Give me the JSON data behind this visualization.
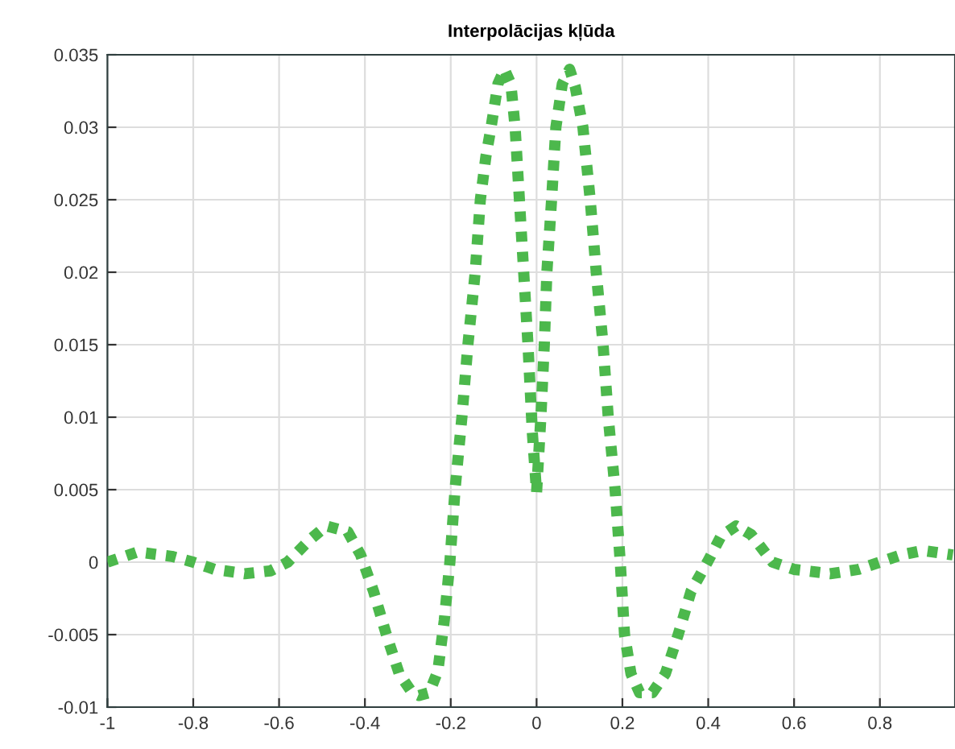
{
  "chart_data": {
    "type": "line",
    "title": "Interpolācijas kļūda",
    "series": [
      {
        "color": "#4cb84c",
        "x": [
          -1,
          -0.93,
          -0.85,
          -0.8,
          -0.75,
          -0.68,
          -0.62,
          -0.58,
          -0.53,
          -0.49,
          -0.44,
          -0.41,
          -0.38,
          -0.35,
          -0.32,
          -0.29,
          -0.274,
          -0.25,
          -0.23,
          -0.215,
          -0.202,
          -0.19,
          -0.174,
          -0.16,
          -0.143,
          -0.131,
          -0.118,
          -0.106,
          -0.09,
          -0.075,
          -0.06,
          -0.05,
          -0.04,
          -0.03,
          -0.02,
          -0.01,
          0,
          0.01,
          0.018,
          0.024,
          0.035,
          0.045,
          0.06,
          0.077,
          0.09,
          0.108,
          0.125,
          0.139,
          0.155,
          0.167,
          0.183,
          0.195,
          0.205,
          0.22,
          0.24,
          0.27,
          0.3,
          0.33,
          0.36,
          0.398,
          0.43,
          0.465,
          0.5,
          0.55,
          0.6,
          0.684,
          0.75,
          0.8,
          0.85,
          0.9,
          0.97
        ],
        "values": [
          0,
          0.0007,
          0.0004,
          0,
          -0.0005,
          -0.0008,
          -0.0006,
          0,
          0.0015,
          0.0025,
          0.0021,
          0.0005,
          -0.002,
          -0.005,
          -0.0077,
          -0.009,
          -0.0092,
          -0.009,
          -0.0075,
          -0.004,
          0,
          0.005,
          0.01,
          0.015,
          0.02,
          0.025,
          0.028,
          0.03,
          0.033,
          0.034,
          0.033,
          0.03,
          0.025,
          0.02,
          0.015,
          0.009,
          0.0048,
          0.01,
          0.015,
          0.02,
          0.025,
          0.03,
          0.033,
          0.034,
          0.0328,
          0.03,
          0.025,
          0.02,
          0.015,
          0.01,
          0.005,
          0,
          -0.005,
          -0.0077,
          -0.009,
          -0.009,
          -0.0077,
          -0.005,
          -0.002,
          0,
          0.0018,
          0.0025,
          0.0019,
          0,
          -0.0005,
          -0.0008,
          -0.0005,
          0,
          0.0005,
          0.0008,
          0.0005
        ]
      }
    ],
    "xlim": [
      -1,
      0.975
    ],
    "xticks": [
      -1,
      -0.8,
      -0.6,
      -0.4,
      -0.2,
      0,
      0.2,
      0.4,
      0.6,
      0.8
    ],
    "ylim": [
      -0.01,
      0.035
    ],
    "yticks": [
      -0.01,
      -0.005,
      0,
      0.005,
      0.01,
      0.015,
      0.02,
      0.025,
      0.03,
      0.035
    ],
    "grid": true,
    "line_style": "dotted",
    "marker": "none"
  }
}
